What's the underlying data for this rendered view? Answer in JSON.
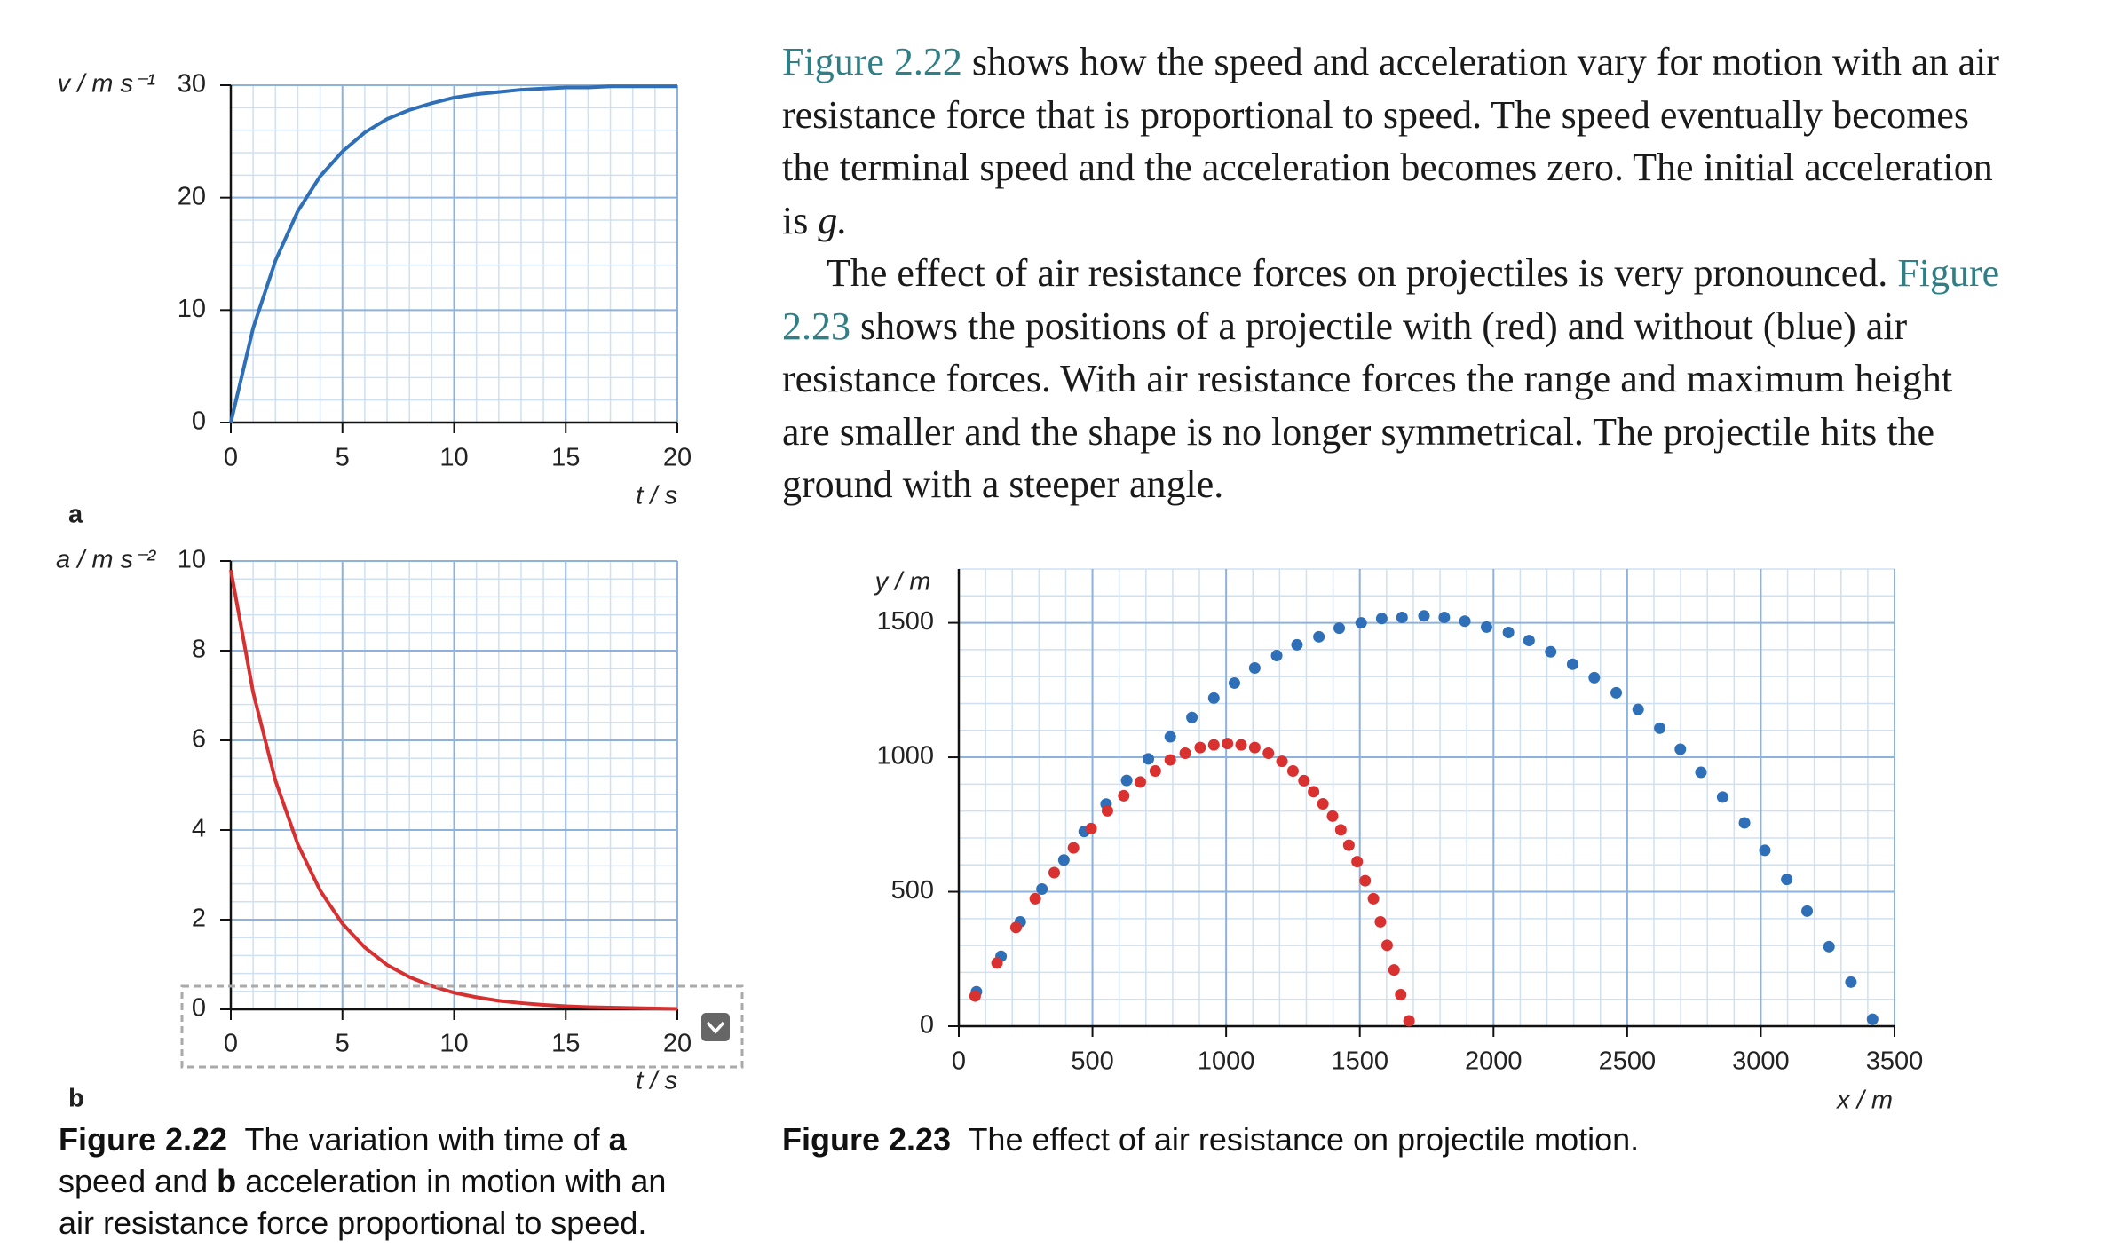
{
  "paragraphs": [
    [
      "Figure 2.22",
      "shows how the speed and acceleration vary for motion with an air resistance force that is proportional to speed. The speed eventually becomes the terminal speed and the acceleration becomes zero. The initial acceleration is",
      "g."
    ],
    [
      "The effect of air resistance forces on projectiles is very pronounced.",
      "Figure 2.23",
      "shows the positions of a projectile with (red) and without (blue) air resistance forces. With air resistance forces the range and maximum height are smaller and the shape is no longer symmetrical. The projectile hits the ground with a steeper angle."
    ]
  ],
  "captions": [
    [
      "Figure 2.22",
      "The variation with time of",
      "a",
      "speed and",
      "b",
      "acceleration in motion with an air resistance force proportional to speed."
    ],
    [
      "Figure 2.23",
      "The effect of air resistance on projectile motion."
    ]
  ],
  "chart_data": [
    {
      "type": "line",
      "label": "a",
      "ylabel": "v / m s⁻¹",
      "xlabel": "t / s",
      "x": [
        0,
        1,
        2,
        3,
        4,
        5,
        6,
        7,
        8,
        9,
        10,
        11,
        12,
        13,
        14,
        15,
        16,
        17,
        18,
        19,
        20
      ],
      "values": [
        0,
        8.4,
        14.4,
        18.8,
        21.9,
        24.1,
        25.8,
        27.0,
        27.8,
        28.4,
        28.9,
        29.2,
        29.4,
        29.6,
        29.7,
        29.8,
        29.8,
        29.9,
        29.9,
        29.9,
        29.9
      ],
      "color": "#2e6fb7",
      "xlim": [
        0,
        20
      ],
      "ylim": [
        0,
        30
      ],
      "xticks": [
        0,
        5,
        10,
        15,
        20
      ],
      "yticks": [
        0,
        10,
        20,
        30
      ],
      "grid": true,
      "minor_grid": 5
    },
    {
      "type": "line",
      "label": "b",
      "ylabel": "a / m s⁻²",
      "xlabel": "t / s",
      "x": [
        0,
        1,
        2,
        3,
        4,
        5,
        6,
        7,
        8,
        9,
        10,
        11,
        12,
        13,
        14,
        15,
        16,
        17,
        18,
        19,
        20
      ],
      "values": [
        9.8,
        7.07,
        5.1,
        3.68,
        2.65,
        1.91,
        1.38,
        0.99,
        0.72,
        0.52,
        0.37,
        0.27,
        0.19,
        0.14,
        0.1,
        0.07,
        0.05,
        0.04,
        0.03,
        0.02,
        0.01
      ],
      "color": "#d63030",
      "xlim": [
        0,
        20
      ],
      "ylim": [
        0,
        10
      ],
      "xticks": [
        0,
        5,
        10,
        15,
        20
      ],
      "yticks": [
        0,
        2,
        4,
        6,
        8,
        10
      ],
      "grid": true,
      "minor_grid": 5
    },
    {
      "type": "scatter",
      "ylabel": "y / m",
      "xlabel": "x / m",
      "series": [
        {
          "color": "#2e6fb7",
          "x": [
            66,
            158,
            230,
            311,
            393,
            469,
            551,
            628,
            709,
            791,
            872,
            954,
            1031,
            1107,
            1189,
            1265,
            1347,
            1423,
            1505,
            1582,
            1658,
            1740,
            1816,
            1893,
            1974,
            2056,
            2133,
            2214,
            2296,
            2377,
            2459,
            2541,
            2622,
            2699,
            2776,
            2857,
            2939,
            3015,
            3097,
            3173,
            3255,
            3337,
            3418
          ],
          "values": [
            128,
            260,
            388,
            510,
            618,
            724,
            826,
            914,
            994,
            1076,
            1148,
            1220,
            1276,
            1332,
            1378,
            1418,
            1448,
            1480,
            1500,
            1516,
            1520,
            1526,
            1520,
            1506,
            1484,
            1464,
            1434,
            1392,
            1346,
            1296,
            1240,
            1178,
            1108,
            1030,
            944,
            852,
            756,
            654,
            546,
            428,
            296,
            164,
            26
          ]
        },
        {
          "color": "#d9312f",
          "x": [
            61,
            143,
            214,
            286,
            357,
            429,
            495,
            556,
            617,
            679,
            735,
            791,
            847,
            903,
            954,
            1005,
            1056,
            1107,
            1158,
            1209,
            1250,
            1291,
            1327,
            1362,
            1398,
            1429,
            1459,
            1490,
            1520,
            1551,
            1577,
            1602,
            1628,
            1653,
            1684
          ],
          "values": [
            112,
            235,
            367,
            474,
            571,
            663,
            735,
            801,
            857,
            908,
            949,
            990,
            1015,
            1036,
            1046,
            1051,
            1046,
            1036,
            1015,
            985,
            949,
            913,
            872,
            827,
            781,
            730,
            673,
            612,
            541,
            474,
            388,
            301,
            209,
            117,
            20
          ]
        }
      ],
      "xlim": [
        0,
        3500
      ],
      "ylim": [
        0,
        1700
      ],
      "xticks": [
        0,
        500,
        1000,
        1500,
        2000,
        2500,
        3000,
        3500
      ],
      "yticks": [
        0,
        500,
        1000,
        1500
      ],
      "grid": true,
      "minor_grid": 5
    }
  ]
}
